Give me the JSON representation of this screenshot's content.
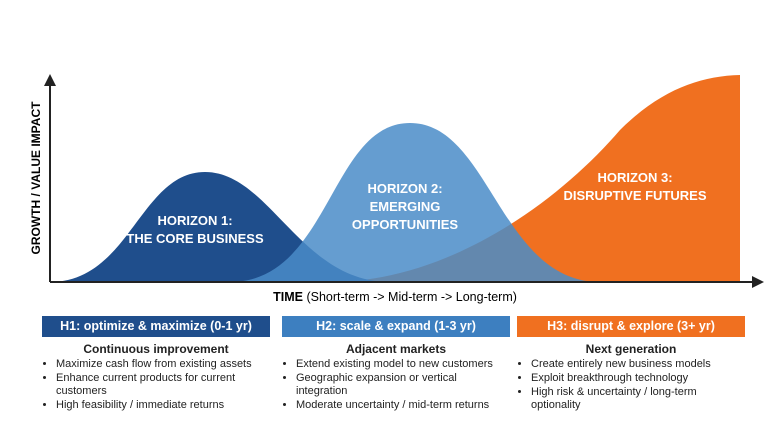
{
  "diagram": {
    "y_axis_label": "GROWTH / VALUE IMPACT",
    "x_axis_label": "TIME",
    "x_axis_note": "(Short-term -> Mid-term -> Long-term)",
    "horizons": [
      {
        "lines": [
          "HORIZON 1:",
          "THE CORE BUSINESS"
        ]
      },
      {
        "lines": [
          "HORIZON 2:",
          "EMERGING",
          "OPPORTUNITIES"
        ]
      },
      {
        "lines": [
          "HORIZON 3:",
          "DISRUPTIVE FUTURES"
        ]
      }
    ]
  },
  "panels": [
    {
      "header": "H1: optimize & maximize (0-1 yr)",
      "subtitle": "Continuous improvement",
      "bullets": [
        "Maximize cash flow from existing assets",
        "Enhance current products for current customers",
        "High feasibility / immediate returns"
      ]
    },
    {
      "header": "H2: scale & expand (1-3 yr)",
      "subtitle": "Adjacent markets",
      "bullets": [
        "Extend existing model to new customers",
        "Geographic expansion or vertical integration",
        "Moderate uncertainty / mid-term returns"
      ]
    },
    {
      "header": "H3: disrupt & explore (3+ yr)",
      "subtitle": "Next generation",
      "bullets": [
        "Create entirely new business models",
        "Exploit breakthrough technology",
        "High risk & uncertainty / long-term optionality"
      ]
    }
  ]
}
